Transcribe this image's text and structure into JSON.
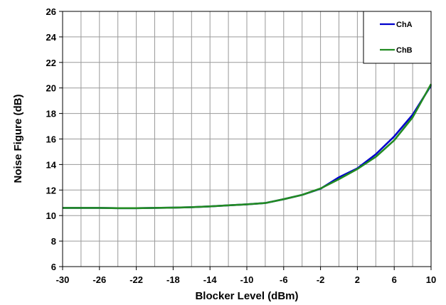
{
  "chart_data": {
    "type": "line",
    "title": "",
    "xlabel": "Blocker Level (dBm)",
    "ylabel": "Noise Figure (dB)",
    "xlim": [
      -30,
      10
    ],
    "ylim": [
      6,
      26
    ],
    "xticks": [
      -30,
      -26,
      -22,
      -18,
      -14,
      -10,
      -6,
      -2,
      2,
      6,
      10
    ],
    "yticks": [
      6,
      8,
      10,
      12,
      14,
      16,
      18,
      20,
      22,
      24,
      26
    ],
    "grid": true,
    "legend_position": "top-right",
    "series": [
      {
        "name": "ChA",
        "color": "#0000CC",
        "x": [
          -30,
          -28,
          -26,
          -24,
          -22,
          -20,
          -18,
          -16,
          -14,
          -12,
          -10,
          -8,
          -6,
          -4,
          -2,
          0,
          2,
          4,
          6,
          8,
          10
        ],
        "y": [
          10.6,
          10.6,
          10.6,
          10.58,
          10.58,
          10.6,
          10.62,
          10.66,
          10.72,
          10.8,
          10.88,
          10.98,
          11.28,
          11.62,
          12.1,
          13.0,
          13.7,
          14.8,
          16.2,
          17.9,
          20.2
        ]
      },
      {
        "name": "ChB",
        "color": "#228B22",
        "x": [
          -30,
          -28,
          -26,
          -24,
          -22,
          -20,
          -18,
          -16,
          -14,
          -12,
          -10,
          -8,
          -6,
          -4,
          -2,
          0,
          2,
          4,
          6,
          8,
          10
        ],
        "y": [
          10.6,
          10.6,
          10.6,
          10.58,
          10.58,
          10.6,
          10.62,
          10.66,
          10.72,
          10.8,
          10.88,
          10.98,
          11.28,
          11.62,
          12.12,
          12.85,
          13.65,
          14.6,
          15.9,
          17.7,
          20.3
        ]
      }
    ]
  }
}
